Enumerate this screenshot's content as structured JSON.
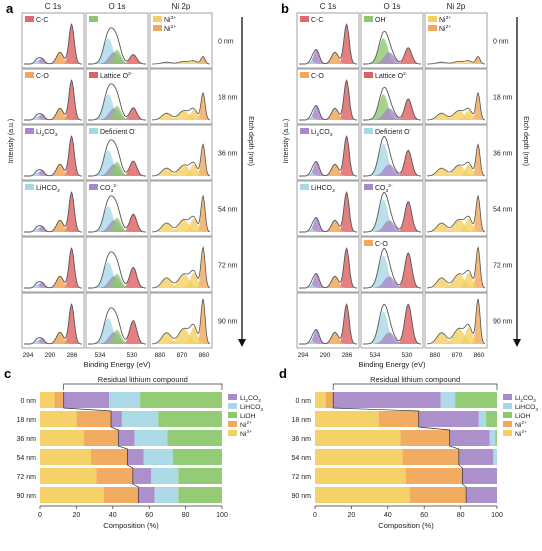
{
  "colors": {
    "cc": "#e06a6a",
    "co": "#f0a85a",
    "li2co3": "#a88ac8",
    "lihco3": "#a8d8e6",
    "oh": "#8ec86e",
    "lattice": "#e06060",
    "deficient": "#a8d8e6",
    "co3": "#a88ac8",
    "ni3": "#f4d060",
    "ni2": "#f0a85a",
    "lioh": "#8ec86e",
    "envelope": "#555555"
  },
  "panel_a": {
    "letter": "a",
    "col_titles": [
      "C 1s",
      "O 1s",
      "Ni 2p"
    ],
    "depths": [
      "0 nm",
      "18 nm",
      "36 nm",
      "54 nm",
      "72 nm",
      "90 nm"
    ],
    "c1s_legend": [
      "C-C",
      "C-O",
      "Li2CO3",
      "LiHCO3"
    ],
    "o1s_legend": [
      "",
      "Lattice O2-",
      "Deficient O-",
      "CO32-"
    ],
    "ni_legend": [
      "Ni3+",
      "Ni2+"
    ],
    "x_ticks": [
      "294",
      "290",
      "286",
      "534",
      "530",
      "880",
      "870",
      "860"
    ],
    "xlabel": "Binding Energy (eV)",
    "ylabel": "Intensity (a.u.)",
    "depth_axis": "Etch depth (nm)"
  },
  "panel_b": {
    "letter": "b",
    "col_titles": [
      "C 1s",
      "O 1s",
      "Ni 2p"
    ],
    "depths": [
      "0 nm",
      "18 nm",
      "36 nm",
      "54 nm",
      "72 nm",
      "90 nm"
    ],
    "c1s_legend": [
      "C-C",
      "C-O",
      "Li2CO3",
      "LiHCO3"
    ],
    "o1s_legend": [
      "OH-",
      "Lattice O2-",
      "Deficient O-",
      "CO32-",
      "C-O"
    ],
    "ni_legend": [
      "Ni3+",
      "Ni2+"
    ],
    "x_ticks": [
      "294",
      "290",
      "286",
      "534",
      "530",
      "880",
      "870",
      "860"
    ],
    "xlabel": "Binding Energy (eV)",
    "ylabel": "Intensity (a.u.)",
    "depth_axis": "Etch depth (nm)"
  },
  "chart_data": [
    {
      "type": "bar",
      "panel": "c",
      "title": "Residual lithium compound",
      "orientation": "horizontal-stacked",
      "categories": [
        "0 nm",
        "18 nm",
        "36 nm",
        "54 nm",
        "72 nm",
        "90 nm"
      ],
      "xlabel": "Composition (%)",
      "xlim": [
        0,
        100
      ],
      "xticks": [
        "0",
        "20",
        "40",
        "60",
        "80",
        "100"
      ],
      "series": [
        {
          "name": "Ni3+",
          "values": [
            8,
            20,
            24,
            28,
            31,
            35
          ]
        },
        {
          "name": "Ni2+",
          "values": [
            5,
            19,
            19,
            20,
            20,
            19
          ]
        },
        {
          "name": "Li2CO3",
          "values": [
            25,
            6,
            9,
            9,
            10,
            9
          ]
        },
        {
          "name": "LiHCO3",
          "values": [
            17,
            20,
            18,
            16,
            15,
            13
          ]
        },
        {
          "name": "LiOH",
          "values": [
            45,
            35,
            30,
            27,
            24,
            24
          ]
        }
      ],
      "legend_labels": [
        "Li2CO3",
        "LiHCO3",
        "LiOH",
        "Ni2+",
        "Ni3+"
      ]
    },
    {
      "type": "bar",
      "panel": "d",
      "title": "Residual lithium compound",
      "orientation": "horizontal-stacked",
      "categories": [
        "0 nm",
        "18 nm",
        "36 nm",
        "54 nm",
        "72 nm",
        "90 nm"
      ],
      "xlabel": "Composition (%)",
      "xlim": [
        0,
        100
      ],
      "xticks": [
        "0",
        "20",
        "40",
        "60",
        "80",
        "100"
      ],
      "series": [
        {
          "name": "Ni3+",
          "values": [
            6,
            35,
            47,
            48,
            50,
            52
          ]
        },
        {
          "name": "Ni2+",
          "values": [
            4,
            22,
            27,
            31,
            31,
            31
          ]
        },
        {
          "name": "Li2CO3",
          "values": [
            59,
            33,
            22,
            19,
            19,
            17
          ]
        },
        {
          "name": "LiHCO3",
          "values": [
            8,
            4,
            3,
            2,
            0,
            0
          ]
        },
        {
          "name": "LiOH",
          "values": [
            23,
            6,
            1,
            0,
            0,
            0
          ]
        }
      ],
      "legend_labels": [
        "Li2CO3",
        "LiHCO3",
        "LiOH",
        "Ni2+",
        "Ni3+"
      ]
    }
  ]
}
